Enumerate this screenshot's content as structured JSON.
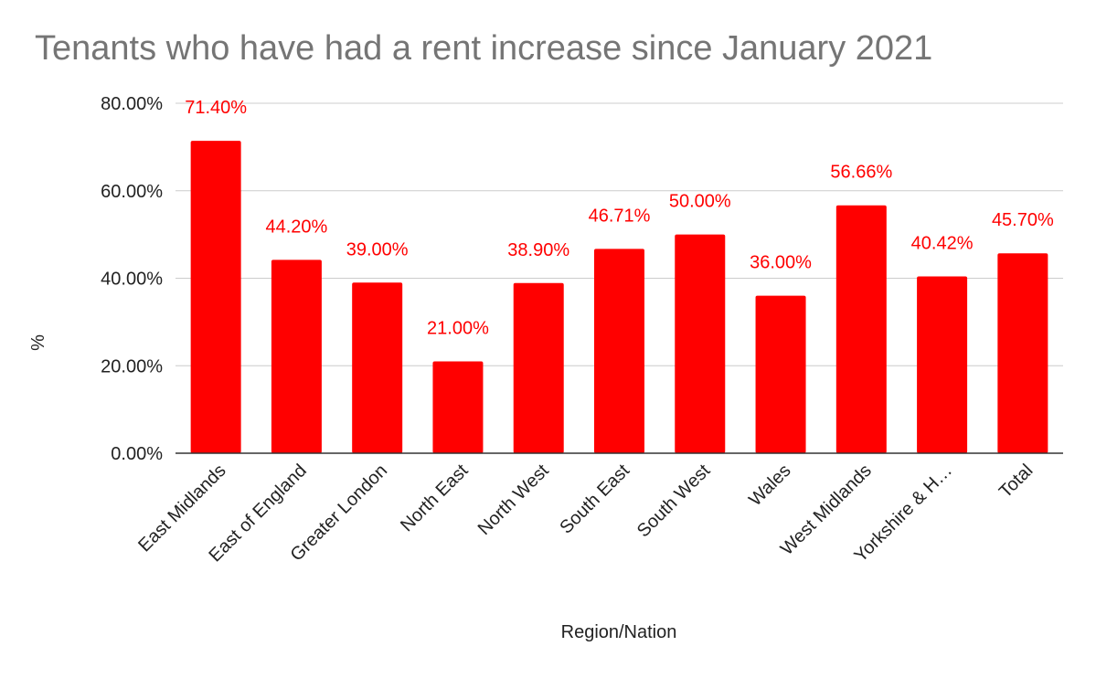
{
  "chart_data": {
    "type": "bar",
    "title": "Tenants who have had a rent increase since January 2021",
    "xlabel": "Region/Nation",
    "ylabel": "%",
    "categories": [
      "East Midlands",
      "East of England",
      "Greater London",
      "North East",
      "North West",
      "South East",
      "South West",
      "Wales",
      "West Midlands",
      "Yorkshire & H…",
      "Total"
    ],
    "values": [
      71.4,
      44.2,
      39.0,
      21.0,
      38.9,
      46.71,
      50.0,
      36.0,
      56.66,
      40.42,
      45.7
    ],
    "data_labels": [
      "71.40%",
      "44.20%",
      "39.00%",
      "21.00%",
      "38.90%",
      "46.71%",
      "50.00%",
      "36.00%",
      "56.66%",
      "40.42%",
      "45.70%"
    ],
    "ylim": [
      0,
      80
    ],
    "yticks": [
      0,
      20,
      40,
      60,
      80
    ],
    "ytick_labels": [
      "0.00%",
      "20.00%",
      "40.00%",
      "60.00%",
      "80.00%"
    ],
    "grid": true,
    "legend": "none",
    "colors": {
      "bar": "#ff0000",
      "label": "#ff0000",
      "title": "#757575",
      "grid": "#cccccc",
      "axis": "#333333"
    }
  }
}
